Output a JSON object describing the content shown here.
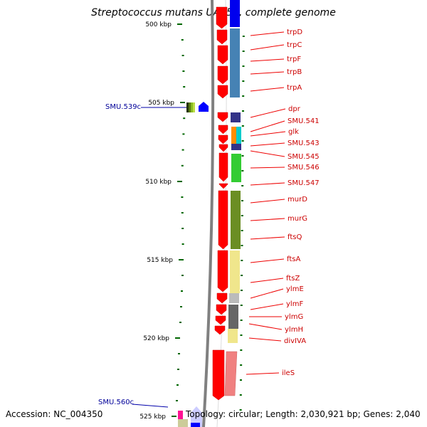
{
  "title": "Streptococcus mutans UA159, complete genome",
  "footer": {
    "accession": "Accession: NC_004350",
    "topology": "Topology: circular; Length: 2,030,921 bp; Genes: 2,040"
  },
  "ticks": [
    {
      "kbp": 500,
      "label": "500 kbp"
    },
    {
      "kbp": 505,
      "label": "505 kbp"
    },
    {
      "kbp": 510,
      "label": "510 kbp"
    },
    {
      "kbp": 515,
      "label": "515 kbp"
    },
    {
      "kbp": 520,
      "label": "520 kbp"
    },
    {
      "kbp": 525,
      "label": "525 kbp"
    }
  ],
  "right_labels": [
    "trpD",
    "trpC",
    "trpF",
    "trpB",
    "trpA",
    "dpr",
    "SMU.541",
    "glk",
    "SMU.543",
    "SMU.545",
    "SMU.546",
    "SMU.547",
    "murD",
    "murG",
    "ftsQ",
    "ftsA",
    "ftsZ",
    "ylmE",
    "ylmF",
    "ylmG",
    "ylmH",
    "divIVA",
    "ileS"
  ],
  "left_labels": [
    "SMU.539c",
    "SMU.560c"
  ],
  "colors": {
    "axis": "#808080",
    "tick": "#006600",
    "gene_arrow": "#ff0000",
    "label_red": "#cc0000",
    "label_blue": "#000099",
    "cog_blue": "#4682b4",
    "cog_navy": "#333388",
    "cog_orange": "#ff8c00",
    "cog_cyan": "#00cccc",
    "cog_green": "#33cc33",
    "cog_olive": "#6b8e23",
    "cog_khaki": "#f0e68c",
    "cog_gray": "#666666",
    "cog_lightgray": "#bbbbbb",
    "cog_salmon": "#f08080"
  }
}
